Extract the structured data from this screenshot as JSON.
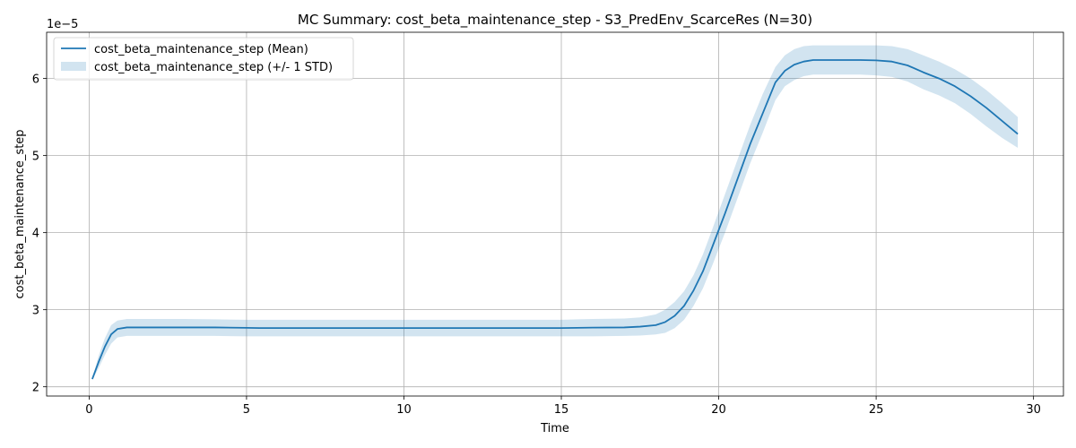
{
  "chart_data": {
    "type": "line",
    "title": "MC Summary: cost_beta_maintenance_step - S3_PredEnv_ScarceRes (N=30)",
    "xlabel": "Time",
    "ylabel": "cost_beta_maintenance_step",
    "y_offset_label": "1e−5",
    "y_scale_exponent": -5,
    "xlim": [
      -1.35,
      30.95
    ],
    "ylim": [
      1.88,
      6.6
    ],
    "xticks": [
      0,
      5,
      10,
      15,
      20,
      25,
      30
    ],
    "xtick_labels": [
      "0",
      "5",
      "10",
      "15",
      "20",
      "25",
      "30"
    ],
    "yticks": [
      2,
      3,
      4,
      5,
      6
    ],
    "ytick_labels": [
      "2",
      "3",
      "4",
      "5",
      "6"
    ],
    "grid": true,
    "legend_position": "upper-left",
    "series": [
      {
        "name": "cost_beta_maintenance_step (Mean)",
        "kind": "line",
        "color": "#1f77b4",
        "x": [
          0.1,
          0.3,
          0.5,
          0.7,
          0.9,
          1.2,
          2,
          3,
          4,
          5,
          5.4,
          6,
          8,
          10,
          12,
          14,
          15,
          15.5,
          16,
          17,
          17.5,
          18,
          18.3,
          18.6,
          18.9,
          19.2,
          19.5,
          19.8,
          20.2,
          20.6,
          21,
          21.4,
          21.8,
          22.1,
          22.4,
          22.7,
          23,
          23.5,
          24,
          24.5,
          25,
          25.5,
          26,
          26.5,
          27,
          27.5,
          28,
          28.5,
          29,
          29.5
        ],
        "values": [
          2.1,
          2.32,
          2.52,
          2.68,
          2.75,
          2.77,
          2.77,
          2.77,
          2.77,
          2.765,
          2.762,
          2.762,
          2.762,
          2.762,
          2.762,
          2.762,
          2.762,
          2.765,
          2.768,
          2.77,
          2.78,
          2.8,
          2.84,
          2.92,
          3.05,
          3.25,
          3.5,
          3.82,
          4.25,
          4.7,
          5.15,
          5.55,
          5.95,
          6.1,
          6.18,
          6.22,
          6.24,
          6.24,
          6.24,
          6.24,
          6.235,
          6.22,
          6.17,
          6.08,
          6.0,
          5.9,
          5.77,
          5.62,
          5.45,
          5.28
        ]
      },
      {
        "name": "cost_beta_maintenance_step (+/- 1 STD)",
        "kind": "band",
        "color": "#1f77b4",
        "opacity": 0.2,
        "x": [
          0.1,
          0.3,
          0.5,
          0.7,
          0.9,
          1.2,
          2,
          3,
          4,
          5,
          5.4,
          6,
          8,
          10,
          12,
          14,
          15,
          15.5,
          16,
          17,
          17.5,
          18,
          18.3,
          18.6,
          18.9,
          19.2,
          19.5,
          19.8,
          20.2,
          20.6,
          21,
          21.4,
          21.8,
          22.1,
          22.4,
          22.7,
          23,
          23.5,
          24,
          24.5,
          25,
          25.5,
          26,
          26.5,
          27,
          27.5,
          28,
          28.5,
          29,
          29.5
        ],
        "upper": [
          2.11,
          2.4,
          2.63,
          2.8,
          2.86,
          2.88,
          2.88,
          2.88,
          2.875,
          2.87,
          2.87,
          2.87,
          2.87,
          2.87,
          2.87,
          2.87,
          2.87,
          2.875,
          2.88,
          2.885,
          2.9,
          2.94,
          3.0,
          3.1,
          3.24,
          3.45,
          3.72,
          4.05,
          4.5,
          4.95,
          5.4,
          5.8,
          6.15,
          6.3,
          6.38,
          6.42,
          6.43,
          6.43,
          6.43,
          6.43,
          6.43,
          6.42,
          6.38,
          6.3,
          6.22,
          6.12,
          6.0,
          5.85,
          5.68,
          5.5
        ],
        "lower": [
          2.09,
          2.24,
          2.41,
          2.56,
          2.64,
          2.66,
          2.66,
          2.66,
          2.66,
          2.655,
          2.655,
          2.655,
          2.655,
          2.655,
          2.655,
          2.655,
          2.655,
          2.655,
          2.655,
          2.66,
          2.665,
          2.68,
          2.7,
          2.76,
          2.87,
          3.05,
          3.28,
          3.58,
          4.0,
          4.45,
          4.9,
          5.3,
          5.72,
          5.9,
          5.98,
          6.03,
          6.05,
          6.05,
          6.05,
          6.05,
          6.04,
          6.02,
          5.96,
          5.86,
          5.78,
          5.68,
          5.54,
          5.38,
          5.23,
          5.1
        ]
      }
    ]
  }
}
